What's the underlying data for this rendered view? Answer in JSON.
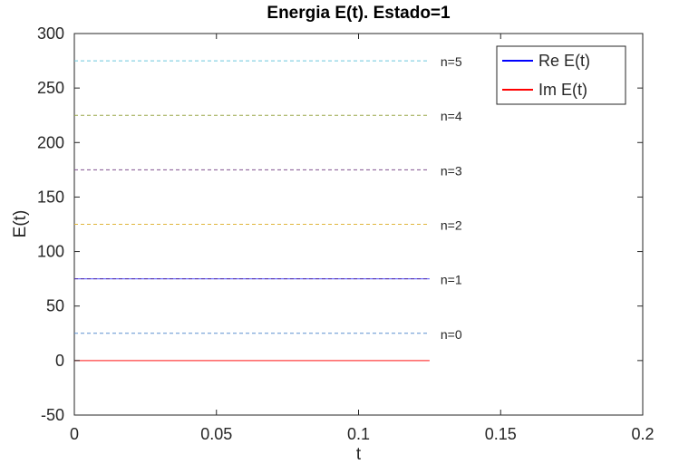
{
  "chart_data": {
    "type": "line",
    "title": "Energia E(t). Estado=1",
    "xlabel": "t",
    "ylabel": "E(t)",
    "xlim": [
      0,
      0.2
    ],
    "ylim": [
      -50,
      300
    ],
    "xticks": [
      0,
      0.05,
      0.1,
      0.15,
      0.2
    ],
    "xtick_labels": [
      "0",
      "0.05",
      "0.1",
      "0.15",
      "0.2"
    ],
    "yticks": [
      -50,
      0,
      50,
      100,
      150,
      200,
      250,
      300
    ],
    "ytick_labels": [
      "-50",
      "0",
      "50",
      "100",
      "150",
      "200",
      "250",
      "300"
    ],
    "grid": false,
    "legend_position": "top-right",
    "series": [
      {
        "name": "Re E(t)",
        "color": "#0000ff",
        "x": [
          0,
          0.125
        ],
        "y": [
          75,
          75
        ]
      },
      {
        "name": "Im E(t)",
        "color": "#ff0000",
        "x": [
          0,
          0.125
        ],
        "y": [
          0,
          0
        ]
      }
    ],
    "reference_levels": [
      {
        "label": "n=0",
        "value": 25,
        "color": "#5a8fcf"
      },
      {
        "label": "n=1",
        "value": 75,
        "color": "#c0703a"
      },
      {
        "label": "n=2",
        "value": 125,
        "color": "#e0b53c"
      },
      {
        "label": "n=3",
        "value": 175,
        "color": "#80508f"
      },
      {
        "label": "n=4",
        "value": 225,
        "color": "#9aa84a"
      },
      {
        "label": "n=5",
        "value": 275,
        "color": "#6cc6dc"
      }
    ],
    "reference_x_end": 0.125
  }
}
